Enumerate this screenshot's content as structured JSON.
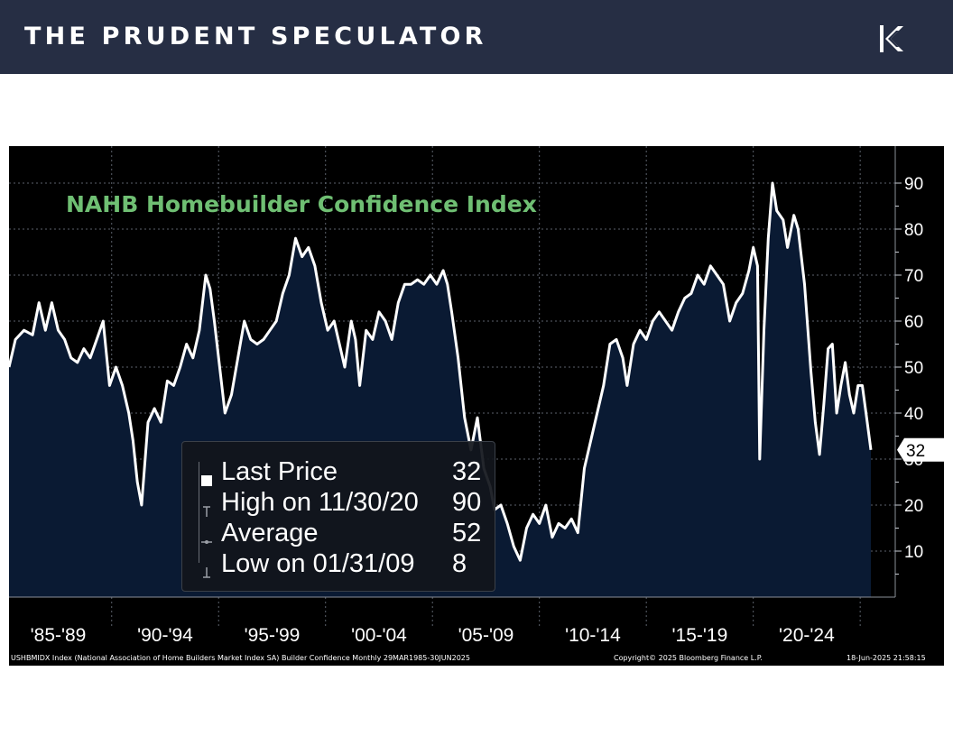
{
  "header": {
    "title": "THE PRUDENT SPECULATOR",
    "logo_icon": "k-chevron-logo-icon"
  },
  "colors": {
    "banner": "#262e44",
    "chart_background": "#000000",
    "area_fill": "#0a1a33",
    "line": "#ffffff",
    "title": "#6fbf73",
    "last_price_tag": "#ffffff"
  },
  "legend": {
    "last_price_label": "Last Price",
    "last_price_value": "32",
    "high_label": "High on 11/30/20",
    "high_value": "90",
    "average_label": "Average",
    "average_value": "52",
    "low_label": "Low on 01/31/09",
    "low_value": "8"
  },
  "footer": {
    "series_description": "USHBMIDX Index (National Association of Home Builders Market Index SA) Builder Confidence  Monthly 29MAR1985-30JUN2025",
    "copyright": "Copyright© 2025 Bloomberg Finance L.P.",
    "timestamp": "18-Jun-2025 21:58:15"
  },
  "chart_data": {
    "type": "area",
    "title": "NAHB Homebuilder Confidence Index",
    "x_unit": "year",
    "x_range": [
      1985.2,
      2025.5
    ],
    "ylim": [
      0,
      95
    ],
    "y_ticks": [
      10,
      20,
      30,
      40,
      50,
      60,
      70,
      80,
      90
    ],
    "x_tick_labels": [
      "'85-'89",
      "'90-'94",
      "'95-'99",
      "'00-'04",
      "'05-'09",
      "'10-'14",
      "'15-'19",
      "'20-'24"
    ],
    "x_tick_centers": [
      1987.5,
      1992.5,
      1997.5,
      2002.5,
      2007.5,
      2012.5,
      2017.5,
      2022.5
    ],
    "x_gridlines": [
      1985,
      1990,
      1995,
      2000,
      2005,
      2010,
      2015,
      2020,
      2025
    ],
    "last_price": 32,
    "legend_placement": "lower-left",
    "grid": true,
    "series": [
      {
        "values": [
          [
            1985.2,
            50
          ],
          [
            1985.5,
            56
          ],
          [
            1985.9,
            58
          ],
          [
            1986.3,
            57
          ],
          [
            1986.6,
            64
          ],
          [
            1986.9,
            58
          ],
          [
            1987.2,
            64
          ],
          [
            1987.5,
            58
          ],
          [
            1987.8,
            56
          ],
          [
            1988.1,
            52
          ],
          [
            1988.4,
            51
          ],
          [
            1988.7,
            54
          ],
          [
            1989.0,
            52
          ],
          [
            1989.3,
            56
          ],
          [
            1989.6,
            60
          ],
          [
            1989.9,
            46
          ],
          [
            1990.2,
            50
          ],
          [
            1990.5,
            46
          ],
          [
            1990.8,
            40
          ],
          [
            1991.0,
            34
          ],
          [
            1991.2,
            25
          ],
          [
            1991.4,
            20
          ],
          [
            1991.7,
            38
          ],
          [
            1992.0,
            41
          ],
          [
            1992.3,
            38
          ],
          [
            1992.6,
            47
          ],
          [
            1992.9,
            46
          ],
          [
            1993.2,
            50
          ],
          [
            1993.5,
            55
          ],
          [
            1993.8,
            52
          ],
          [
            1994.1,
            58
          ],
          [
            1994.4,
            70
          ],
          [
            1994.6,
            67
          ],
          [
            1994.8,
            60
          ],
          [
            1995.1,
            48
          ],
          [
            1995.3,
            40
          ],
          [
            1995.6,
            44
          ],
          [
            1995.9,
            52
          ],
          [
            1996.2,
            60
          ],
          [
            1996.5,
            56
          ],
          [
            1996.8,
            55
          ],
          [
            1997.1,
            56
          ],
          [
            1997.4,
            58
          ],
          [
            1997.7,
            60
          ],
          [
            1998.0,
            66
          ],
          [
            1998.3,
            70
          ],
          [
            1998.6,
            78
          ],
          [
            1998.9,
            74
          ],
          [
            1999.2,
            76
          ],
          [
            1999.5,
            72
          ],
          [
            1999.8,
            64
          ],
          [
            2000.1,
            58
          ],
          [
            2000.4,
            60
          ],
          [
            2000.7,
            54
          ],
          [
            2000.9,
            50
          ],
          [
            2001.2,
            60
          ],
          [
            2001.4,
            56
          ],
          [
            2001.6,
            46
          ],
          [
            2001.9,
            58
          ],
          [
            2002.2,
            56
          ],
          [
            2002.5,
            62
          ],
          [
            2002.8,
            60
          ],
          [
            2003.1,
            56
          ],
          [
            2003.4,
            64
          ],
          [
            2003.7,
            68
          ],
          [
            2004.0,
            68
          ],
          [
            2004.3,
            69
          ],
          [
            2004.6,
            68
          ],
          [
            2004.9,
            70
          ],
          [
            2005.2,
            68
          ],
          [
            2005.5,
            71
          ],
          [
            2005.7,
            68
          ],
          [
            2005.9,
            62
          ],
          [
            2006.2,
            52
          ],
          [
            2006.5,
            39
          ],
          [
            2006.8,
            32
          ],
          [
            2007.1,
            39
          ],
          [
            2007.4,
            28
          ],
          [
            2007.7,
            24
          ],
          [
            2007.9,
            19
          ],
          [
            2008.2,
            20
          ],
          [
            2008.5,
            16
          ],
          [
            2008.8,
            11
          ],
          [
            2009.1,
            8
          ],
          [
            2009.4,
            15
          ],
          [
            2009.7,
            18
          ],
          [
            2010.0,
            16
          ],
          [
            2010.3,
            20
          ],
          [
            2010.6,
            13
          ],
          [
            2010.9,
            16
          ],
          [
            2011.2,
            15
          ],
          [
            2011.5,
            17
          ],
          [
            2011.8,
            14
          ],
          [
            2012.1,
            28
          ],
          [
            2012.4,
            34
          ],
          [
            2012.7,
            40
          ],
          [
            2013.0,
            46
          ],
          [
            2013.3,
            55
          ],
          [
            2013.6,
            56
          ],
          [
            2013.9,
            52
          ],
          [
            2014.1,
            46
          ],
          [
            2014.4,
            55
          ],
          [
            2014.7,
            58
          ],
          [
            2015.0,
            56
          ],
          [
            2015.3,
            60
          ],
          [
            2015.6,
            62
          ],
          [
            2015.9,
            60
          ],
          [
            2016.2,
            58
          ],
          [
            2016.5,
            62
          ],
          [
            2016.8,
            65
          ],
          [
            2017.1,
            66
          ],
          [
            2017.4,
            70
          ],
          [
            2017.7,
            68
          ],
          [
            2018.0,
            72
          ],
          [
            2018.3,
            70
          ],
          [
            2018.6,
            68
          ],
          [
            2018.9,
            60
          ],
          [
            2019.2,
            64
          ],
          [
            2019.5,
            66
          ],
          [
            2019.8,
            71
          ],
          [
            2020.0,
            76
          ],
          [
            2020.2,
            72
          ],
          [
            2020.3,
            30
          ],
          [
            2020.5,
            58
          ],
          [
            2020.7,
            78
          ],
          [
            2020.9,
            90
          ],
          [
            2021.1,
            84
          ],
          [
            2021.4,
            82
          ],
          [
            2021.6,
            76
          ],
          [
            2021.9,
            83
          ],
          [
            2022.1,
            80
          ],
          [
            2022.4,
            68
          ],
          [
            2022.7,
            49
          ],
          [
            2022.9,
            38
          ],
          [
            2023.1,
            31
          ],
          [
            2023.3,
            42
          ],
          [
            2023.5,
            54
          ],
          [
            2023.7,
            55
          ],
          [
            2023.9,
            40
          ],
          [
            2024.1,
            46
          ],
          [
            2024.3,
            51
          ],
          [
            2024.5,
            44
          ],
          [
            2024.7,
            40
          ],
          [
            2024.9,
            46
          ],
          [
            2025.1,
            46
          ],
          [
            2025.3,
            39
          ],
          [
            2025.5,
            32
          ]
        ]
      }
    ]
  }
}
